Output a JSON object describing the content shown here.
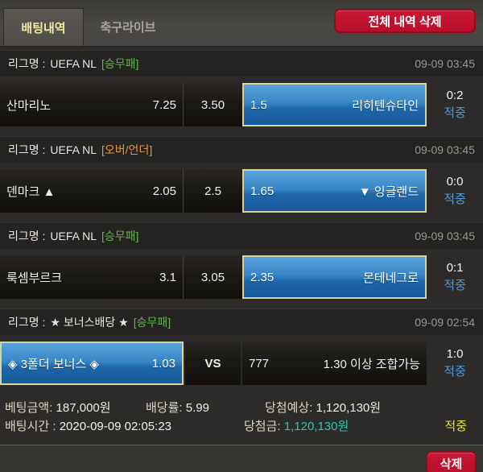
{
  "tabs": {
    "betting_history": "배팅내역",
    "soccer_live": "축구라이브"
  },
  "buttons": {
    "delete_all": "전체 내역 삭제",
    "delete": "삭제"
  },
  "sections": [
    {
      "league_label": "리그명 :",
      "league_name": "UEFA NL",
      "market": "[승무패]",
      "datetime": "09-09 03:45",
      "cells": {
        "home_name": "산마리노",
        "home_odds": "7.25",
        "draw_odds": "3.50",
        "away_odds": "1.5",
        "away_name": "리히텐슈타인"
      },
      "score": "0:2",
      "result": "적중"
    },
    {
      "league_label": "리그명 :",
      "league_name": "UEFA NL",
      "market": "[오버/언더]",
      "datetime": "09-09 03:45",
      "cells": {
        "home_name": "덴마크 ▲",
        "home_odds": "2.05",
        "draw_odds": "2.5",
        "away_odds": "1.65",
        "away_name": "▼ 잉글랜드"
      },
      "score": "0:0",
      "result": "적중"
    },
    {
      "league_label": "리그명 :",
      "league_name": "UEFA NL",
      "market": "[승무패]",
      "datetime": "09-09 03:45",
      "cells": {
        "home_name": "룩셈부르크",
        "home_odds": "3.1",
        "draw_odds": "3.05",
        "away_odds": "2.35",
        "away_name": "몬테네그로"
      },
      "score": "0:1",
      "result": "적중"
    },
    {
      "league_label": "리그명 :",
      "league_name": "★ 보너스배당 ★",
      "market": "[승무패]",
      "datetime": "09-09 02:54",
      "cells": {
        "bonus_name": "◈ 3폴더 보너스 ◈",
        "bonus_odds": "1.03",
        "vs_label": "VS",
        "right_left": "777",
        "right_text": "1.30 이상 조합가능"
      },
      "score": "1:0",
      "result": "적중"
    }
  ],
  "summary": {
    "bet_amount_label": "베팅금액:",
    "bet_amount": "187,000원",
    "odds_label": "배당률:",
    "odds": "5.99",
    "expected_label": "당첨예상:",
    "expected": "1,120,130원",
    "bet_time_label": "배팅시간 :",
    "bet_time": "2020-09-09 02:05:23",
    "prize_label": "당첨금:",
    "prize": "1,120,130원",
    "result": "적중"
  },
  "colors": {
    "selected_blue": "#2f7fc0",
    "selected_border": "#d9d2a2",
    "hit_status_blue": "#539ad6",
    "market_wdl_green": "#61b648",
    "market_ou_orange": "#df9b3a",
    "button_red": "#c1122f",
    "prize_teal": "#2ec4b0",
    "hit_yellow": "#e6e13c",
    "active_tab_yellow": "#efe9a6"
  }
}
